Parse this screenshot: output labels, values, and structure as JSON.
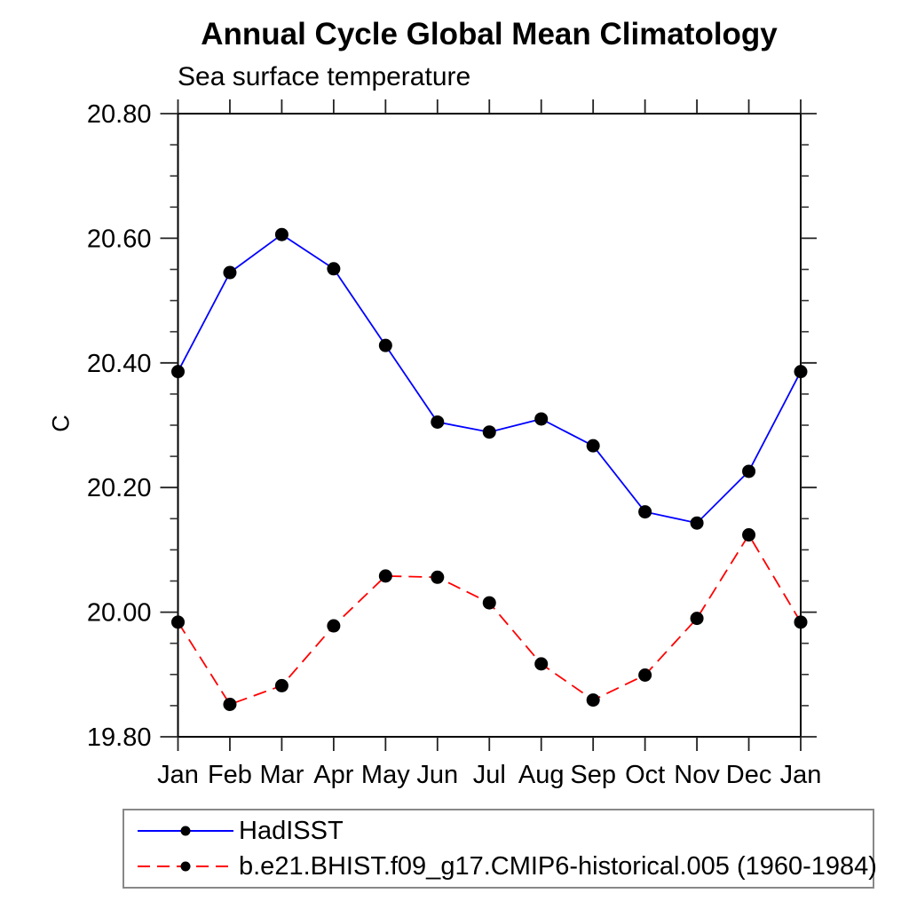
{
  "title": "Annual Cycle Global Mean Climatology",
  "subtitle": "Sea surface temperature",
  "ylabel": "C",
  "chart_data": {
    "type": "line",
    "categories": [
      "Jan",
      "Feb",
      "Mar",
      "Apr",
      "May",
      "Jun",
      "Jul",
      "Aug",
      "Sep",
      "Oct",
      "Nov",
      "Dec",
      "Jan"
    ],
    "ylim": [
      19.8,
      20.8
    ],
    "ytick_interval": 0.2,
    "yminor_interval": 0.05,
    "ytick_labels": [
      "20.80",
      "20.60",
      "20.40",
      "20.20",
      "20.00",
      "19.80"
    ],
    "ylabel": "C",
    "grid": "off",
    "legend_position": "below-left",
    "series": [
      {
        "name": "HadISST",
        "color": "#0000ff",
        "line_style": "solid",
        "marker": "filled-circle",
        "marker_color": "#000000",
        "values": [
          20.386,
          20.545,
          20.606,
          20.551,
          20.428,
          20.305,
          20.289,
          20.31,
          20.267,
          20.161,
          20.143,
          20.226,
          20.386
        ]
      },
      {
        "name": "b.e21.BHIST.f09_g17.CMIP6-historical.005 (1960-1984)",
        "color": "#ff0000",
        "line_style": "dashed",
        "marker": "filled-circle",
        "marker_color": "#000000",
        "values": [
          19.984,
          19.852,
          19.882,
          19.978,
          20.058,
          20.056,
          20.015,
          19.917,
          19.859,
          19.899,
          19.99,
          20.124,
          19.984
        ]
      }
    ]
  }
}
